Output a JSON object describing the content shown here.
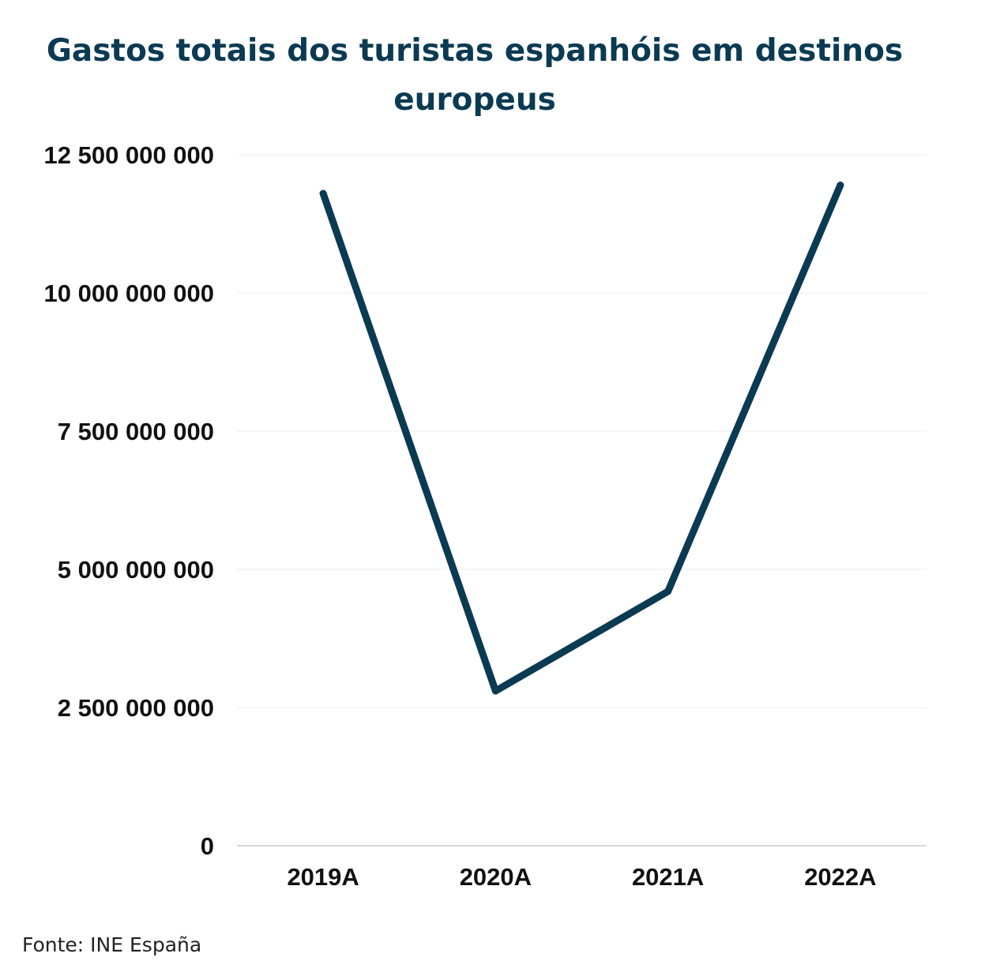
{
  "chart_data": {
    "type": "line",
    "title": "Gastos totais dos turistas espanhóis em destinos europeus",
    "xlabel": "",
    "ylabel": "",
    "categories": [
      "2019A",
      "2020A",
      "2021A",
      "2022A"
    ],
    "series": [
      {
        "values": [
          11800000000,
          2800000000,
          4600000000,
          11950000000
        ]
      }
    ],
    "ylim": [
      0,
      12500000000
    ],
    "yticks": [
      0,
      2500000000,
      5000000000,
      7500000000,
      10000000000,
      12500000000
    ],
    "ytick_labels": [
      "0",
      "2 500 000 000",
      "5 000 000 000",
      "7 500 000 000",
      "10 000 000 000",
      "12 500 000 000"
    ],
    "grid": true,
    "legend": "none",
    "line_color": "#0b3a53"
  },
  "source": "Fonte: INE España"
}
